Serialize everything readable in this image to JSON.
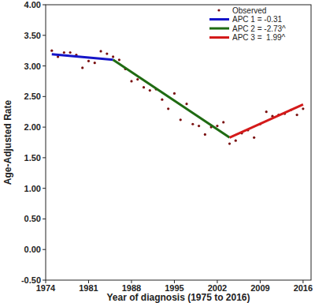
{
  "chart_data": {
    "type": "scatter",
    "x_label": "Year of diagnosis (1975 to 2016)",
    "y_label": "Age-Adjusted Rate",
    "xlim": [
      1974,
      2017.3
    ],
    "ylim": [
      -0.5,
      4.0
    ],
    "xticks": [
      1974,
      1981,
      1988,
      1995,
      2002,
      2009,
      2016
    ],
    "yticks": [
      {
        "value": -0.5,
        "label": "-0.50"
      },
      {
        "value": 0.0,
        "label": "0.00"
      },
      {
        "value": 0.5,
        "label": "0.50"
      },
      {
        "value": 1.0,
        "label": "1.00"
      },
      {
        "value": 1.5,
        "label": "1.50"
      },
      {
        "value": 2.0,
        "label": "2.00"
      },
      {
        "value": 2.5,
        "label": "2.50"
      },
      {
        "value": 3.0,
        "label": "3.00"
      },
      {
        "value": 3.5,
        "label": "3.50"
      },
      {
        "value": 4.0,
        "label": "4.00"
      }
    ],
    "grid": false,
    "legend": "top-right",
    "series": [
      {
        "name": "Observed",
        "type": "scatter",
        "marker": "circle",
        "color": "#7a1010",
        "x": [
          1975,
          1976,
          1977,
          1978,
          1979,
          1980,
          1981,
          1982,
          1983,
          1984,
          1985,
          1986,
          1987,
          1988,
          1989,
          1990,
          1991,
          1992,
          1993,
          1994,
          1995,
          1996,
          1997,
          1998,
          1999,
          2000,
          2001,
          2002,
          2003,
          2004,
          2005,
          2006,
          2007,
          2008,
          2009,
          2010,
          2011,
          2012,
          2013,
          2014,
          2015,
          2016
        ],
        "values": [
          3.25,
          3.15,
          3.22,
          3.22,
          3.18,
          2.97,
          3.08,
          3.05,
          3.24,
          3.2,
          3.15,
          3.1,
          2.95,
          2.75,
          2.78,
          2.65,
          2.6,
          2.62,
          2.45,
          2.3,
          2.55,
          2.12,
          2.38,
          2.05,
          2.02,
          1.88,
          2.0,
          2.02,
          2.08,
          1.73,
          1.78,
          1.9,
          1.95,
          1.83,
          2.05,
          2.25,
          2.18,
          2.2,
          2.22,
          2.28,
          2.2,
          2.3
        ]
      },
      {
        "name": "APC 1 = -0.31",
        "type": "line",
        "line_style": "solid",
        "color": "#1515c8",
        "x": [
          1975,
          1985
        ],
        "values": [
          3.19,
          3.1
        ]
      },
      {
        "name": "APC 2 = -2.73^",
        "type": "line",
        "line_style": "solid",
        "color": "#1f6b12",
        "x": [
          1985,
          2004
        ],
        "values": [
          3.1,
          1.83
        ]
      },
      {
        "name": "APC 3 =  1.99^",
        "type": "line",
        "line_style": "solid",
        "color": "#d41a1a",
        "x": [
          2004,
          2016
        ],
        "values": [
          1.83,
          2.37
        ]
      }
    ]
  }
}
